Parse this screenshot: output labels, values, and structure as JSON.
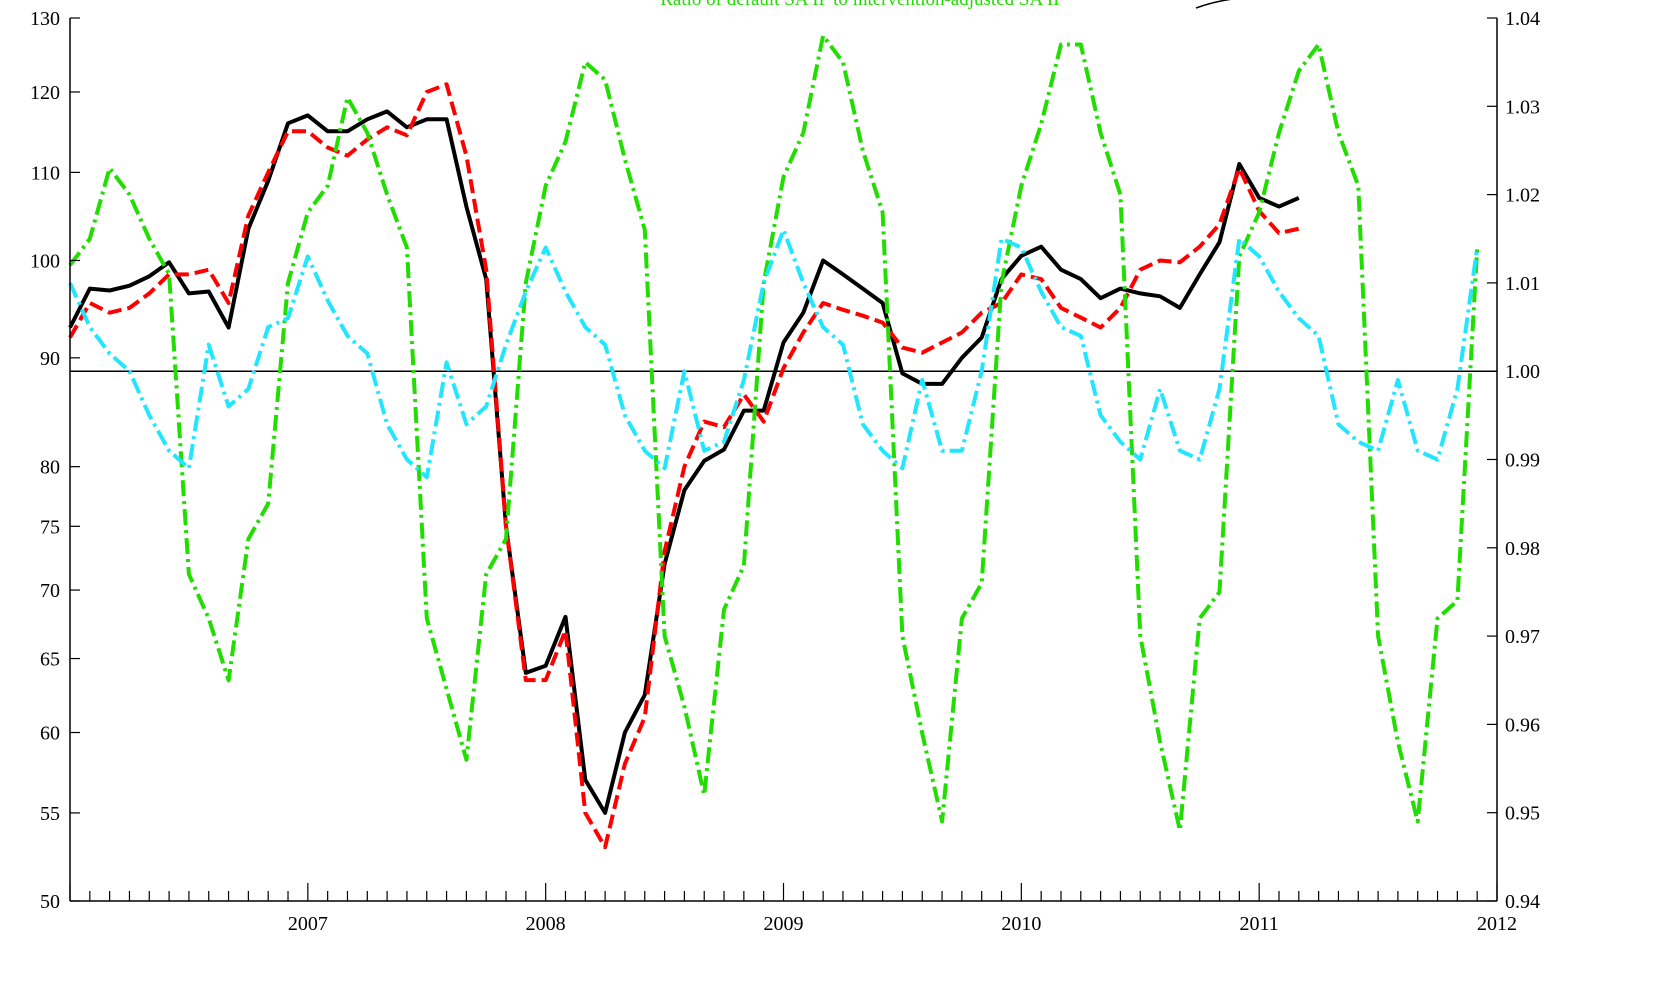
{
  "chart_data": {
    "type": "line",
    "annotation": "Ratio of default SA IP to intervention-adjusted SA IP",
    "x_start": "2006-07",
    "x_end": "2012-07",
    "x_tick_labels": [
      "2007",
      "2008",
      "2009",
      "2010",
      "2011",
      "2012"
    ],
    "grid": false,
    "left_axis": {
      "scale": "log",
      "range": [
        50,
        130
      ],
      "ticks": [
        50,
        55,
        60,
        65,
        70,
        75,
        80,
        90,
        100,
        110,
        120,
        130
      ],
      "tick_labels": [
        "50",
        "55",
        "60",
        "65",
        "70",
        "75",
        "80",
        "90",
        "100",
        "110",
        "120",
        "130"
      ]
    },
    "right_axis": {
      "scale": "linear",
      "range": [
        0.94,
        1.04
      ],
      "ticks": [
        0.94,
        0.95,
        0.96,
        0.97,
        0.98,
        0.99,
        1.0,
        1.01,
        1.02,
        1.03,
        1.04
      ],
      "tick_labels": [
        "0.94",
        "0.95",
        "0.96",
        "0.97",
        "0.98",
        "0.99",
        "1.00",
        "1.01",
        "1.02",
        "1.03",
        "1.04"
      ],
      "reference_line": 1.0
    },
    "colors": {
      "black": "#000000",
      "red": "#ff0000",
      "green": "#22dd00",
      "cyan": "#22e6ff"
    },
    "series": [
      {
        "axis": "left",
        "color": "black",
        "style": "solid",
        "start": "2006-07",
        "values": [
          93,
          97,
          96.8,
          97.3,
          98.3,
          99.8,
          96.5,
          96.7,
          93,
          103.5,
          109,
          116,
          117,
          115,
          115,
          116.5,
          117.5,
          115.5,
          116.5,
          116.5,
          106,
          98,
          75,
          64,
          64.5,
          68,
          57,
          55,
          60,
          62.5,
          72,
          78,
          80.5,
          81.5,
          85,
          85,
          91.5,
          94.5,
          100,
          98.5,
          97,
          95.5,
          88.5,
          87.5,
          87.5,
          90,
          92,
          98,
          100.5,
          101.5,
          99,
          98,
          96,
          97,
          96.5,
          96.2,
          95,
          98.5,
          102,
          111,
          107,
          106,
          107
        ]
      },
      {
        "axis": "left",
        "color": "red",
        "style": "dashed",
        "start": "2006-07",
        "values": [
          92,
          95.5,
          94.5,
          95,
          96.5,
          98.5,
          98.5,
          99,
          95.5,
          105,
          110,
          115,
          115,
          113,
          112,
          114,
          115.5,
          114.5,
          120,
          121,
          112,
          99,
          75,
          63.5,
          63.5,
          67,
          55,
          53,
          58,
          61,
          73,
          80,
          84,
          83.5,
          86.5,
          84,
          89,
          92.5,
          95.5,
          94.8,
          94.2,
          93.5,
          91,
          90.5,
          91.5,
          92.5,
          94.5,
          95.5,
          98.5,
          98,
          95,
          94,
          93,
          95,
          99,
          100,
          99.8,
          101.5,
          104,
          110.5,
          105.5,
          103,
          103.5
        ]
      },
      {
        "axis": "right",
        "color": "green",
        "style": "dash-dot",
        "start": "2006-07",
        "values": [
          1.012,
          1.015,
          1.023,
          1.02,
          1.015,
          1.011,
          0.977,
          0.972,
          0.965,
          0.981,
          0.985,
          1.01,
          1.018,
          1.021,
          1.031,
          1.027,
          1.02,
          1.014,
          0.972,
          0.964,
          0.956,
          0.977,
          0.981,
          1.01,
          1.021,
          1.026,
          1.035,
          1.033,
          1.024,
          1.016,
          0.97,
          0.962,
          0.952,
          0.973,
          0.978,
          1.01,
          1.022,
          1.027,
          1.038,
          1.035,
          1.025,
          1.018,
          0.97,
          0.959,
          0.949,
          0.972,
          0.976,
          1.01,
          1.021,
          1.028,
          1.037,
          1.037,
          1.027,
          1.02,
          0.97,
          0.958,
          0.948,
          0.972,
          0.975,
          1.013,
          1.018,
          1.027,
          1.034,
          1.037,
          1.027,
          1.021,
          0.97,
          0.958,
          0.949,
          0.972,
          0.974,
          1.014
        ]
      },
      {
        "axis": "right",
        "color": "cyan",
        "style": "dash-dot",
        "start": "2006-07",
        "values": [
          1.01,
          1.005,
          1.002,
          1.0,
          0.995,
          0.991,
          0.989,
          1.003,
          0.996,
          0.998,
          1.005,
          1.006,
          1.013,
          1.008,
          1.004,
          1.002,
          0.994,
          0.99,
          0.988,
          1.001,
          0.994,
          0.996,
          1.003,
          1.009,
          1.014,
          1.009,
          1.005,
          1.003,
          0.995,
          0.991,
          0.989,
          1.0,
          0.991,
          0.992,
          0.999,
          1.01,
          1.016,
          1.01,
          1.005,
          1.003,
          0.994,
          0.991,
          0.989,
          0.999,
          0.991,
          0.991,
          1.0,
          1.015,
          1.014,
          1.009,
          1.005,
          1.004,
          0.995,
          0.992,
          0.99,
          0.998,
          0.991,
          0.99,
          0.998,
          1.015,
          1.013,
          1.009,
          1.006,
          1.004,
          0.994,
          0.992,
          0.991,
          0.999,
          0.991,
          0.99,
          0.998,
          1.014
        ]
      }
    ]
  }
}
